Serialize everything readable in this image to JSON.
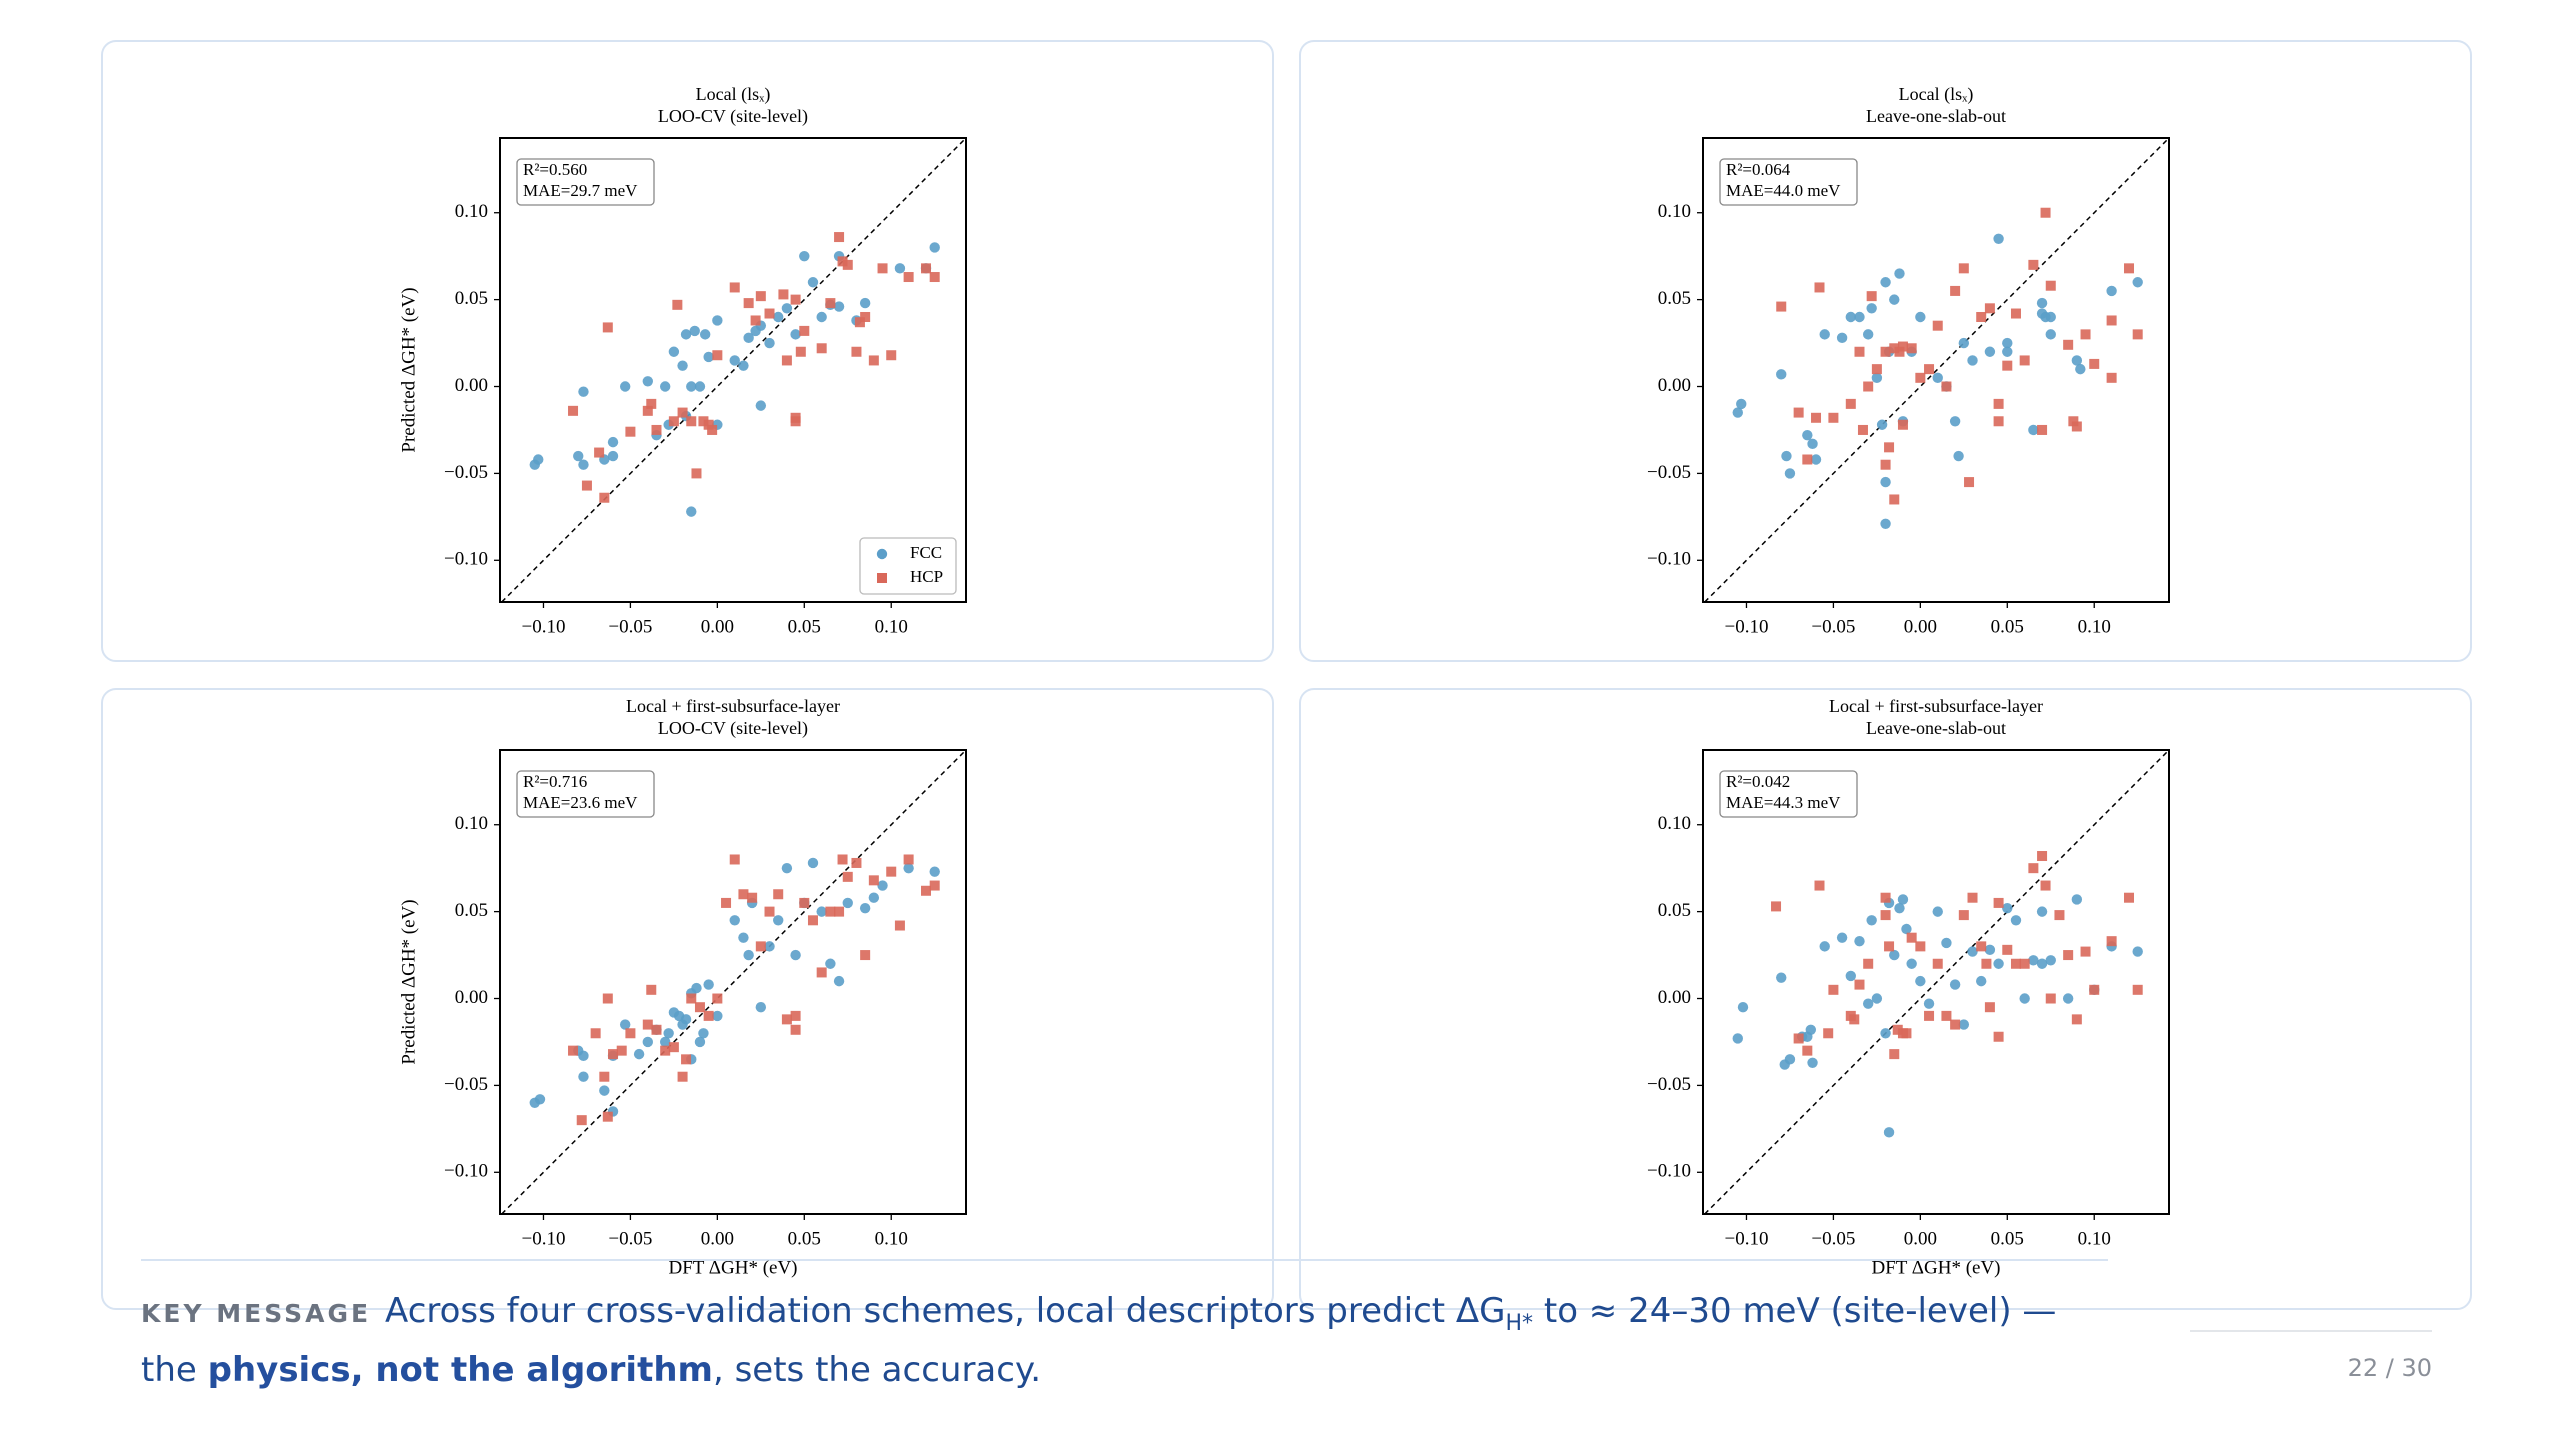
{
  "chart_data": [
    {
      "type": "scatter",
      "title": "Local (lsₓ)",
      "subtitle": "LOO-CV (site-level)",
      "ylabel": "Predicted ΔGH* (eV)",
      "annotation": [
        "R²=0.560",
        "MAE=29.7 meV"
      ],
      "xlim": [
        -0.125,
        0.143
      ],
      "ylim": [
        -0.124,
        0.143
      ],
      "xticks": [
        {
          "value": -0.1,
          "label": "−0.10"
        },
        {
          "value": -0.05,
          "label": "−0.05"
        },
        {
          "value": 0,
          "label": "0.00"
        },
        {
          "value": 0.05,
          "label": "0.05"
        },
        {
          "value": 0.1,
          "label": "0.10"
        }
      ],
      "yticks": [
        {
          "value": -0.1,
          "label": "−0.10"
        },
        {
          "value": -0.05,
          "label": "−0.05"
        },
        {
          "value": 0,
          "label": "0.00"
        },
        {
          "value": 0.05,
          "label": "0.05"
        },
        {
          "value": 0.1,
          "label": "0.10"
        }
      ],
      "legend": "lower right",
      "series": [
        {
          "name": "FCC",
          "color": "#5b9ec9",
          "marker": "o",
          "x": [
            -0.105,
            -0.103,
            -0.08,
            -0.077,
            -0.077,
            -0.065,
            -0.06,
            -0.06,
            -0.053,
            -0.04,
            -0.03,
            -0.028,
            -0.025,
            -0.02,
            -0.018,
            -0.018,
            -0.015,
            -0.015,
            -0.013,
            -0.01,
            -0.007,
            -0.005,
            0.0,
            0.01,
            0.015,
            0.018,
            0.022,
            0.025,
            0.03,
            0.035,
            0.04,
            0.045,
            0.05,
            0.055,
            0.06,
            0.065,
            0.07,
            0.07,
            0.08,
            0.085,
            0.105,
            0.12,
            0.125,
            0.025,
            0.0,
            -0.035
          ],
          "values": [
            -0.045,
            -0.042,
            -0.04,
            -0.003,
            -0.045,
            -0.042,
            -0.04,
            -0.032,
            0.0,
            0.003,
            0.0,
            -0.022,
            0.02,
            0.012,
            -0.017,
            0.03,
            -0.072,
            0.0,
            0.032,
            0.0,
            0.03,
            0.017,
            0.038,
            0.015,
            0.012,
            0.028,
            0.032,
            0.035,
            0.025,
            0.04,
            0.045,
            0.03,
            0.075,
            0.06,
            0.04,
            0.047,
            0.046,
            0.075,
            0.038,
            0.048,
            0.068,
            0.068,
            0.08,
            -0.011,
            -0.022,
            -0.028
          ]
        },
        {
          "name": "HCP",
          "color": "#d9685a",
          "marker": "s",
          "x": [
            -0.083,
            -0.075,
            -0.068,
            -0.065,
            -0.063,
            -0.05,
            -0.04,
            -0.038,
            -0.035,
            -0.025,
            -0.023,
            -0.02,
            -0.015,
            -0.012,
            -0.008,
            -0.005,
            -0.003,
            0.0,
            0.01,
            0.018,
            0.022,
            0.025,
            0.03,
            0.038,
            0.04,
            0.045,
            0.045,
            0.048,
            0.05,
            0.06,
            0.065,
            0.07,
            0.072,
            0.075,
            0.08,
            0.082,
            0.085,
            0.09,
            0.095,
            0.1,
            0.11,
            0.12,
            0.125,
            0.045
          ],
          "values": [
            -0.014,
            -0.057,
            -0.038,
            -0.064,
            0.034,
            -0.026,
            -0.014,
            -0.01,
            -0.025,
            -0.02,
            0.047,
            -0.015,
            -0.02,
            -0.05,
            -0.02,
            -0.022,
            -0.025,
            0.018,
            0.057,
            0.048,
            0.038,
            0.052,
            0.042,
            0.053,
            0.015,
            -0.02,
            -0.018,
            0.02,
            0.032,
            0.022,
            0.048,
            0.086,
            0.072,
            0.07,
            0.02,
            0.037,
            0.04,
            0.015,
            0.068,
            0.018,
            0.063,
            0.068,
            0.063,
            0.05
          ]
        }
      ]
    },
    {
      "type": "scatter",
      "title": "Local (lsₓ)",
      "subtitle": "Leave-one-slab-out",
      "annotation": [
        "R²=0.064",
        "MAE=44.0 meV"
      ],
      "xlim": [
        -0.125,
        0.143
      ],
      "ylim": [
        -0.124,
        0.143
      ],
      "xticks": [
        {
          "value": -0.1,
          "label": "−0.10"
        },
        {
          "value": -0.05,
          "label": "−0.05"
        },
        {
          "value": 0,
          "label": "0.00"
        },
        {
          "value": 0.05,
          "label": "0.05"
        },
        {
          "value": 0.1,
          "label": "0.10"
        }
      ],
      "yticks": [
        {
          "value": -0.1,
          "label": "−0.10"
        },
        {
          "value": -0.05,
          "label": "−0.05"
        },
        {
          "value": 0,
          "label": "0.00"
        },
        {
          "value": 0.05,
          "label": "0.05"
        },
        {
          "value": 0.1,
          "label": "0.10"
        }
      ],
      "series": [
        {
          "color": "#5b9ec9",
          "marker": "o",
          "x": [
            -0.105,
            -0.103,
            -0.08,
            -0.077,
            -0.075,
            -0.065,
            -0.062,
            -0.06,
            -0.055,
            -0.045,
            -0.04,
            -0.035,
            -0.03,
            -0.028,
            -0.025,
            -0.022,
            -0.02,
            -0.02,
            -0.02,
            -0.018,
            -0.015,
            -0.012,
            -0.01,
            -0.005,
            0.0,
            0.01,
            0.015,
            0.02,
            0.022,
            0.025,
            0.03,
            0.04,
            0.045,
            0.05,
            0.05,
            0.065,
            0.07,
            0.072,
            0.075,
            0.075,
            0.09,
            0.092,
            0.11,
            0.125,
            0.07
          ],
          "values": [
            -0.015,
            -0.01,
            0.007,
            -0.04,
            -0.05,
            -0.028,
            -0.033,
            -0.042,
            0.03,
            0.028,
            0.04,
            0.04,
            0.03,
            0.045,
            0.005,
            -0.022,
            0.06,
            -0.055,
            -0.079,
            0.02,
            0.05,
            0.065,
            -0.02,
            0.02,
            0.04,
            0.005,
            0.0,
            -0.02,
            -0.04,
            0.025,
            0.015,
            0.02,
            0.085,
            0.02,
            0.025,
            -0.025,
            0.048,
            0.04,
            0.04,
            0.03,
            0.015,
            0.01,
            0.055,
            0.06,
            0.042
          ]
        },
        {
          "color": "#d9685a",
          "marker": "s",
          "x": [
            -0.08,
            -0.07,
            -0.065,
            -0.06,
            -0.058,
            -0.05,
            -0.04,
            -0.035,
            -0.033,
            -0.03,
            -0.028,
            -0.025,
            -0.02,
            -0.015,
            -0.012,
            -0.01,
            -0.005,
            -0.018,
            -0.02,
            -0.015,
            -0.01,
            0.0,
            0.005,
            0.01,
            0.015,
            0.02,
            0.025,
            0.028,
            0.035,
            0.04,
            0.045,
            0.045,
            0.05,
            0.055,
            0.06,
            0.065,
            0.07,
            0.072,
            0.075,
            0.085,
            0.088,
            0.09,
            0.095,
            0.1,
            0.11,
            0.11,
            0.12,
            0.125
          ],
          "values": [
            0.046,
            -0.015,
            -0.042,
            -0.018,
            0.057,
            -0.018,
            -0.01,
            0.02,
            -0.025,
            0.0,
            0.052,
            0.01,
            0.02,
            0.022,
            0.02,
            0.023,
            0.022,
            -0.035,
            -0.045,
            -0.065,
            -0.022,
            0.005,
            0.01,
            0.035,
            0.0,
            0.055,
            0.068,
            -0.055,
            0.04,
            0.045,
            -0.01,
            -0.02,
            0.012,
            0.042,
            0.015,
            0.07,
            -0.025,
            0.1,
            0.058,
            0.024,
            -0.02,
            -0.023,
            0.03,
            0.013,
            0.005,
            0.038,
            0.068,
            0.03
          ]
        }
      ]
    },
    {
      "type": "scatter",
      "title": "Local + first-subsurface-layer",
      "subtitle": "LOO-CV (site-level)",
      "ylabel": "Predicted ΔGH* (eV)",
      "xlabel": "DFT ΔGH* (eV)",
      "annotation": [
        "R²=0.716",
        "MAE=23.6 meV"
      ],
      "xlim": [
        -0.125,
        0.143
      ],
      "ylim": [
        -0.124,
        0.143
      ],
      "xticks": [
        {
          "value": -0.1,
          "label": "−0.10"
        },
        {
          "value": -0.05,
          "label": "−0.05"
        },
        {
          "value": 0,
          "label": "0.00"
        },
        {
          "value": 0.05,
          "label": "0.05"
        },
        {
          "value": 0.1,
          "label": "0.10"
        }
      ],
      "yticks": [
        {
          "value": -0.1,
          "label": "−0.10"
        },
        {
          "value": -0.05,
          "label": "−0.05"
        },
        {
          "value": 0,
          "label": "0.00"
        },
        {
          "value": 0.05,
          "label": "0.05"
        },
        {
          "value": 0.1,
          "label": "0.10"
        }
      ],
      "series": [
        {
          "color": "#5b9ec9",
          "marker": "o",
          "x": [
            -0.105,
            -0.102,
            -0.08,
            -0.077,
            -0.077,
            -0.065,
            -0.06,
            -0.06,
            -0.053,
            -0.045,
            -0.04,
            -0.035,
            -0.03,
            -0.028,
            -0.025,
            -0.022,
            -0.02,
            -0.018,
            -0.015,
            -0.015,
            -0.012,
            -0.01,
            -0.008,
            -0.005,
            0.0,
            0.01,
            0.015,
            0.018,
            0.02,
            0.025,
            0.03,
            0.035,
            0.04,
            0.045,
            0.05,
            0.055,
            0.06,
            0.065,
            0.07,
            0.075,
            0.085,
            0.09,
            0.095,
            0.11,
            0.125
          ],
          "values": [
            -0.06,
            -0.058,
            -0.03,
            -0.033,
            -0.045,
            -0.053,
            -0.033,
            -0.065,
            -0.015,
            -0.032,
            -0.025,
            -0.018,
            -0.025,
            -0.02,
            -0.008,
            -0.01,
            -0.015,
            -0.012,
            -0.035,
            0.003,
            0.006,
            -0.025,
            -0.02,
            0.008,
            -0.01,
            0.045,
            0.035,
            0.025,
            0.055,
            -0.005,
            0.03,
            0.045,
            0.075,
            0.025,
            0.055,
            0.078,
            0.05,
            0.02,
            0.01,
            0.055,
            0.052,
            0.058,
            0.065,
            0.075,
            0.073
          ]
        },
        {
          "color": "#d9685a",
          "marker": "s",
          "x": [
            -0.083,
            -0.078,
            -0.07,
            -0.065,
            -0.063,
            -0.063,
            -0.06,
            -0.055,
            -0.05,
            -0.04,
            -0.038,
            -0.035,
            -0.03,
            -0.025,
            -0.02,
            -0.018,
            -0.015,
            -0.01,
            -0.005,
            0.0,
            0.005,
            0.01,
            0.015,
            0.02,
            0.025,
            0.03,
            0.035,
            0.04,
            0.045,
            0.045,
            0.05,
            0.055,
            0.06,
            0.065,
            0.07,
            0.072,
            0.075,
            0.08,
            0.085,
            0.09,
            0.1,
            0.105,
            0.11,
            0.12,
            0.125
          ],
          "values": [
            -0.03,
            -0.07,
            -0.02,
            -0.045,
            -0.068,
            0.0,
            -0.032,
            -0.03,
            -0.02,
            -0.015,
            0.005,
            -0.018,
            -0.03,
            -0.028,
            -0.045,
            -0.035,
            0.0,
            -0.005,
            -0.01,
            0.0,
            0.055,
            0.08,
            0.06,
            0.058,
            0.03,
            0.05,
            0.06,
            -0.012,
            -0.018,
            -0.01,
            0.055,
            0.045,
            0.015,
            0.05,
            0.05,
            0.08,
            0.07,
            0.078,
            0.025,
            0.068,
            0.073,
            0.042,
            0.08,
            0.062,
            0.065
          ]
        }
      ]
    },
    {
      "type": "scatter",
      "title": "Local + first-subsurface-layer",
      "subtitle": "Leave-one-slab-out",
      "xlabel": "DFT ΔGH* (eV)",
      "annotation": [
        "R²=0.042",
        "MAE=44.3 meV"
      ],
      "xlim": [
        -0.125,
        0.143
      ],
      "ylim": [
        -0.124,
        0.143
      ],
      "xticks": [
        {
          "value": -0.1,
          "label": "−0.10"
        },
        {
          "value": -0.05,
          "label": "−0.05"
        },
        {
          "value": 0,
          "label": "0.00"
        },
        {
          "value": 0.05,
          "label": "0.05"
        },
        {
          "value": 0.1,
          "label": "0.10"
        }
      ],
      "yticks": [
        {
          "value": -0.1,
          "label": "−0.10"
        },
        {
          "value": -0.05,
          "label": "−0.05"
        },
        {
          "value": 0,
          "label": "0.00"
        },
        {
          "value": 0.05,
          "label": "0.05"
        },
        {
          "value": 0.1,
          "label": "0.10"
        }
      ],
      "series": [
        {
          "color": "#5b9ec9",
          "marker": "o",
          "x": [
            -0.105,
            -0.102,
            -0.08,
            -0.078,
            -0.075,
            -0.068,
            -0.065,
            -0.063,
            -0.062,
            -0.055,
            -0.045,
            -0.04,
            -0.035,
            -0.03,
            -0.028,
            -0.025,
            -0.02,
            -0.018,
            -0.018,
            -0.015,
            -0.012,
            -0.01,
            -0.008,
            -0.005,
            0.0,
            0.005,
            0.01,
            0.015,
            0.02,
            0.025,
            0.03,
            0.035,
            0.04,
            0.045,
            0.05,
            0.055,
            0.06,
            0.065,
            0.07,
            0.07,
            0.075,
            0.085,
            0.09,
            0.1,
            0.11,
            0.125
          ],
          "values": [
            -0.023,
            -0.005,
            0.012,
            -0.038,
            -0.035,
            -0.022,
            -0.022,
            -0.018,
            -0.037,
            0.03,
            0.035,
            0.013,
            0.033,
            -0.003,
            0.045,
            0.0,
            -0.02,
            0.055,
            -0.077,
            0.025,
            0.052,
            0.057,
            0.04,
            0.02,
            0.01,
            -0.003,
            0.05,
            0.032,
            0.008,
            -0.015,
            0.027,
            0.01,
            0.028,
            0.02,
            0.052,
            0.045,
            0.0,
            0.022,
            0.05,
            0.02,
            0.022,
            0.0,
            0.057,
            0.005,
            0.03,
            0.027
          ]
        },
        {
          "color": "#d9685a",
          "marker": "s",
          "x": [
            -0.083,
            -0.07,
            -0.065,
            -0.058,
            -0.053,
            -0.05,
            -0.04,
            -0.038,
            -0.035,
            -0.03,
            -0.02,
            -0.02,
            -0.018,
            -0.015,
            -0.013,
            -0.01,
            -0.008,
            -0.005,
            0.0,
            0.005,
            0.01,
            0.015,
            0.02,
            0.025,
            0.03,
            0.035,
            0.038,
            0.04,
            0.045,
            0.045,
            0.05,
            0.055,
            0.06,
            0.065,
            0.07,
            0.072,
            0.075,
            0.08,
            0.085,
            0.09,
            0.095,
            0.1,
            0.11,
            0.12,
            0.125
          ],
          "values": [
            0.053,
            -0.023,
            -0.03,
            0.065,
            -0.02,
            0.005,
            -0.01,
            -0.012,
            0.008,
            0.02,
            0.058,
            0.048,
            0.03,
            -0.032,
            -0.018,
            -0.02,
            -0.02,
            0.035,
            0.03,
            -0.01,
            0.02,
            -0.01,
            -0.015,
            0.048,
            0.058,
            0.03,
            0.02,
            -0.005,
            -0.022,
            0.055,
            0.028,
            0.02,
            0.02,
            0.075,
            0.082,
            0.065,
            0.0,
            0.048,
            0.025,
            -0.012,
            0.027,
            0.005,
            0.033,
            0.058,
            0.005
          ]
        }
      ]
    }
  ],
  "key_message": {
    "label": "KEY MESSAGE",
    "parts": [
      "Across four cross-validation schemes, local descriptors predict ΔG",
      "H*",
      " to ≈ 24–30 meV (site-level) — the ",
      "physics, not the algorithm",
      ", sets the accuracy."
    ]
  },
  "page_number": "22 / 30"
}
